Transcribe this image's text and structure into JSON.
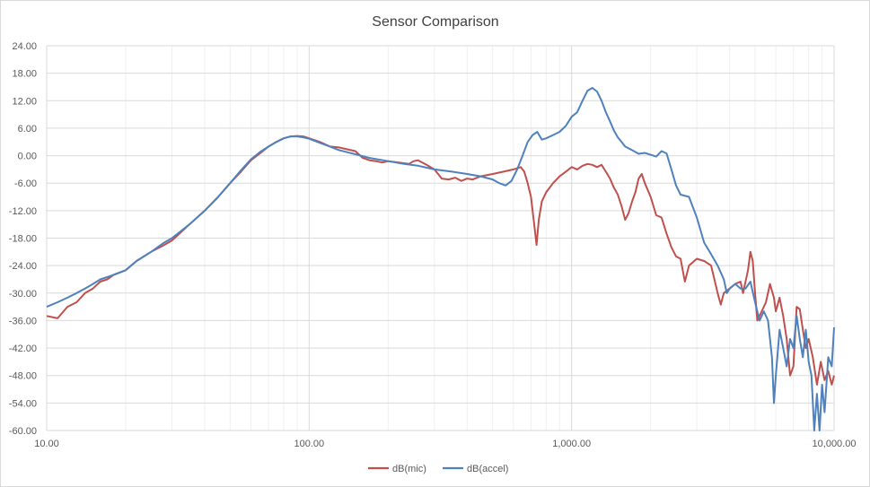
{
  "chart_data": {
    "type": "line",
    "title": "Sensor Comparison",
    "xlabel": "",
    "ylabel": "",
    "x_scale": "log",
    "xlim": [
      10,
      10000
    ],
    "ylim": [
      -60,
      24
    ],
    "x_ticks": [
      10,
      100,
      1000,
      10000
    ],
    "x_tick_labels": [
      "10.00",
      "100.00",
      "1,000.00",
      "10,000.00"
    ],
    "y_ticks": [
      24,
      18,
      12,
      6,
      0,
      -6,
      -12,
      -18,
      -24,
      -30,
      -36,
      -42,
      -48,
      -54,
      -60
    ],
    "y_tick_labels": [
      "24.00",
      "18.00",
      "12.00",
      "6.00",
      "0.00",
      "-6.00",
      "-12.00",
      "-18.00",
      "-24.00",
      "-30.00",
      "-36.00",
      "-42.00",
      "-48.00",
      "-54.00",
      "-60.00"
    ],
    "grid": true,
    "legend_position": "bottom",
    "series": [
      {
        "name": "dB(mic)",
        "color": "#c0504d",
        "points": [
          [
            10,
            -35
          ],
          [
            11,
            -35.5
          ],
          [
            12,
            -33
          ],
          [
            13,
            -32
          ],
          [
            14,
            -30
          ],
          [
            15,
            -29
          ],
          [
            16,
            -27.5
          ],
          [
            17,
            -27
          ],
          [
            18,
            -26
          ],
          [
            20,
            -25
          ],
          [
            22,
            -23
          ],
          [
            25,
            -21
          ],
          [
            28,
            -19.5
          ],
          [
            30,
            -18.5
          ],
          [
            35,
            -15
          ],
          [
            40,
            -12
          ],
          [
            45,
            -9
          ],
          [
            50,
            -6
          ],
          [
            55,
            -3.5
          ],
          [
            60,
            -1
          ],
          [
            65,
            0.5
          ],
          [
            70,
            2
          ],
          [
            75,
            3
          ],
          [
            80,
            3.8
          ],
          [
            85,
            4.2
          ],
          [
            90,
            4.3
          ],
          [
            95,
            4.2
          ],
          [
            100,
            3.8
          ],
          [
            110,
            3
          ],
          [
            120,
            2
          ],
          [
            130,
            1.8
          ],
          [
            150,
            1
          ],
          [
            160,
            -0.5
          ],
          [
            170,
            -1
          ],
          [
            180,
            -1.2
          ],
          [
            190,
            -1.5
          ],
          [
            200,
            -1.2
          ],
          [
            220,
            -1.5
          ],
          [
            240,
            -1.8
          ],
          [
            250,
            -1.2
          ],
          [
            260,
            -1
          ],
          [
            280,
            -2
          ],
          [
            300,
            -3
          ],
          [
            310,
            -4
          ],
          [
            320,
            -5
          ],
          [
            340,
            -5.2
          ],
          [
            360,
            -4.8
          ],
          [
            380,
            -5.5
          ],
          [
            400,
            -5
          ],
          [
            420,
            -5.2
          ],
          [
            450,
            -4.5
          ],
          [
            500,
            -4
          ],
          [
            550,
            -3.5
          ],
          [
            600,
            -3
          ],
          [
            640,
            -2.5
          ],
          [
            660,
            -3.5
          ],
          [
            680,
            -6
          ],
          [
            700,
            -9
          ],
          [
            720,
            -15
          ],
          [
            735,
            -19.5
          ],
          [
            750,
            -14
          ],
          [
            770,
            -10
          ],
          [
            800,
            -8
          ],
          [
            850,
            -6
          ],
          [
            900,
            -4.5
          ],
          [
            950,
            -3.5
          ],
          [
            1000,
            -2.5
          ],
          [
            1050,
            -3
          ],
          [
            1100,
            -2.2
          ],
          [
            1150,
            -1.8
          ],
          [
            1200,
            -2
          ],
          [
            1250,
            -2.5
          ],
          [
            1300,
            -2
          ],
          [
            1350,
            -3.5
          ],
          [
            1400,
            -5
          ],
          [
            1450,
            -7
          ],
          [
            1500,
            -8.5
          ],
          [
            1550,
            -11
          ],
          [
            1600,
            -14
          ],
          [
            1650,
            -12.5
          ],
          [
            1700,
            -10
          ],
          [
            1750,
            -8
          ],
          [
            1800,
            -5
          ],
          [
            1850,
            -4
          ],
          [
            1900,
            -6
          ],
          [
            2000,
            -9
          ],
          [
            2100,
            -13
          ],
          [
            2200,
            -13.5
          ],
          [
            2300,
            -17
          ],
          [
            2400,
            -20
          ],
          [
            2500,
            -22
          ],
          [
            2600,
            -22.5
          ],
          [
            2700,
            -27.5
          ],
          [
            2800,
            -24
          ],
          [
            3000,
            -22.5
          ],
          [
            3200,
            -23
          ],
          [
            3400,
            -24
          ],
          [
            3500,
            -27
          ],
          [
            3600,
            -30
          ],
          [
            3700,
            -32.5
          ],
          [
            3800,
            -30
          ],
          [
            4000,
            -29
          ],
          [
            4200,
            -28
          ],
          [
            4400,
            -27.5
          ],
          [
            4500,
            -30
          ],
          [
            4700,
            -25
          ],
          [
            4800,
            -21
          ],
          [
            4900,
            -23
          ],
          [
            5000,
            -30
          ],
          [
            5100,
            -36
          ],
          [
            5300,
            -34
          ],
          [
            5500,
            -32
          ],
          [
            5700,
            -28
          ],
          [
            5900,
            -31
          ],
          [
            6000,
            -34
          ],
          [
            6200,
            -31
          ],
          [
            6400,
            -35
          ],
          [
            6600,
            -40
          ],
          [
            6800,
            -48
          ],
          [
            7000,
            -46
          ],
          [
            7200,
            -33
          ],
          [
            7400,
            -33.5
          ],
          [
            7600,
            -38
          ],
          [
            7800,
            -42
          ],
          [
            8000,
            -40
          ],
          [
            8300,
            -44
          ],
          [
            8600,
            -50
          ],
          [
            8900,
            -45
          ],
          [
            9200,
            -49
          ],
          [
            9500,
            -47
          ],
          [
            9800,
            -50
          ],
          [
            10000,
            -48
          ]
        ]
      },
      {
        "name": "dB(accel)",
        "color": "#4f81bd",
        "points": [
          [
            10,
            -33
          ],
          [
            11,
            -32
          ],
          [
            12,
            -31
          ],
          [
            13,
            -30
          ],
          [
            14,
            -29
          ],
          [
            15,
            -28
          ],
          [
            16,
            -27
          ],
          [
            17,
            -26.5
          ],
          [
            18,
            -26
          ],
          [
            20,
            -25
          ],
          [
            22,
            -23
          ],
          [
            25,
            -21
          ],
          [
            28,
            -19
          ],
          [
            30,
            -18
          ],
          [
            35,
            -15
          ],
          [
            40,
            -12
          ],
          [
            45,
            -9
          ],
          [
            50,
            -6
          ],
          [
            55,
            -3.2
          ],
          [
            60,
            -0.8
          ],
          [
            65,
            0.8
          ],
          [
            70,
            2
          ],
          [
            75,
            3
          ],
          [
            80,
            3.8
          ],
          [
            85,
            4.2
          ],
          [
            90,
            4.2
          ],
          [
            95,
            4
          ],
          [
            100,
            3.7
          ],
          [
            110,
            2.8
          ],
          [
            120,
            2
          ],
          [
            130,
            1.2
          ],
          [
            150,
            0.3
          ],
          [
            170,
            -0.5
          ],
          [
            200,
            -1.2
          ],
          [
            230,
            -1.8
          ],
          [
            260,
            -2.2
          ],
          [
            300,
            -3
          ],
          [
            350,
            -3.5
          ],
          [
            400,
            -4
          ],
          [
            450,
            -4.5
          ],
          [
            500,
            -5.2
          ],
          [
            530,
            -6
          ],
          [
            560,
            -6.5
          ],
          [
            590,
            -5.5
          ],
          [
            620,
            -3
          ],
          [
            650,
            0
          ],
          [
            680,
            3
          ],
          [
            710,
            4.5
          ],
          [
            740,
            5.2
          ],
          [
            770,
            3.5
          ],
          [
            800,
            3.8
          ],
          [
            850,
            4.5
          ],
          [
            900,
            5.2
          ],
          [
            950,
            6.5
          ],
          [
            1000,
            8.5
          ],
          [
            1050,
            9.5
          ],
          [
            1100,
            12
          ],
          [
            1150,
            14.2
          ],
          [
            1200,
            14.8
          ],
          [
            1250,
            14
          ],
          [
            1300,
            12
          ],
          [
            1350,
            9.5
          ],
          [
            1400,
            7.5
          ],
          [
            1450,
            5.5
          ],
          [
            1500,
            4
          ],
          [
            1550,
            3
          ],
          [
            1600,
            2
          ],
          [
            1700,
            1.2
          ],
          [
            1800,
            0.4
          ],
          [
            1900,
            0.6
          ],
          [
            2000,
            0.2
          ],
          [
            2100,
            -0.2
          ],
          [
            2200,
            1
          ],
          [
            2300,
            0.5
          ],
          [
            2400,
            -3
          ],
          [
            2500,
            -6.5
          ],
          [
            2600,
            -8.5
          ],
          [
            2800,
            -9
          ],
          [
            3000,
            -13.5
          ],
          [
            3200,
            -19
          ],
          [
            3400,
            -21.5
          ],
          [
            3600,
            -24
          ],
          [
            3700,
            -25.5
          ],
          [
            3800,
            -27
          ],
          [
            3900,
            -30
          ],
          [
            4000,
            -29
          ],
          [
            4200,
            -28
          ],
          [
            4400,
            -29
          ],
          [
            4600,
            -29
          ],
          [
            4800,
            -27.5
          ],
          [
            5000,
            -32
          ],
          [
            5200,
            -36
          ],
          [
            5400,
            -34
          ],
          [
            5600,
            -36
          ],
          [
            5800,
            -44
          ],
          [
            5900,
            -54
          ],
          [
            6000,
            -48
          ],
          [
            6200,
            -38
          ],
          [
            6400,
            -42
          ],
          [
            6600,
            -46
          ],
          [
            6800,
            -40
          ],
          [
            7000,
            -42
          ],
          [
            7200,
            -35
          ],
          [
            7400,
            -40
          ],
          [
            7600,
            -44
          ],
          [
            7800,
            -38
          ],
          [
            8000,
            -45
          ],
          [
            8200,
            -48
          ],
          [
            8400,
            -60
          ],
          [
            8600,
            -52
          ],
          [
            8800,
            -60
          ],
          [
            9000,
            -50
          ],
          [
            9200,
            -56
          ],
          [
            9500,
            -44
          ],
          [
            9800,
            -46
          ],
          [
            10000,
            -37.5
          ]
        ]
      }
    ]
  }
}
